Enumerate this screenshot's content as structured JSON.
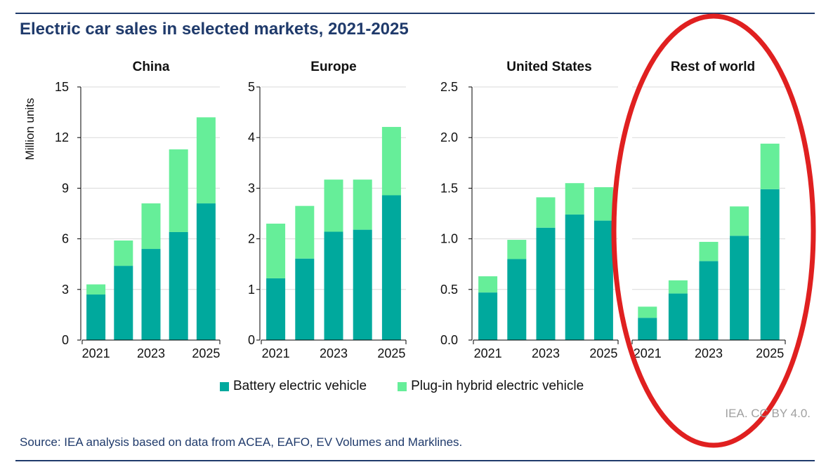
{
  "header": {
    "title": "Electric car sales in selected markets, 2021-2025"
  },
  "footer": {
    "credit": "IEA. CC BY 4.0.",
    "source": "Source: IEA analysis based on data from ACEA, EAFO, EV Volumes and Marklines."
  },
  "colors": {
    "bev": "#00a99d",
    "phev": "#66ee99",
    "axis": "#000000",
    "grid": "#d9d9d9",
    "highlight": "#e02020",
    "title": "#1f3a6b"
  },
  "chart_data": {
    "type": "bar",
    "stacked": true,
    "ylabel": "Million units",
    "legend_position": "bottom",
    "grid": true,
    "legend": [
      {
        "name": "Battery electric vehicle",
        "color": "#00a99d"
      },
      {
        "name": "Plug-in hybrid electric vehicle",
        "color": "#66ee99"
      }
    ],
    "panels": [
      {
        "name": "China",
        "categories": [
          "2021",
          "2022",
          "2023",
          "2024",
          "2025"
        ],
        "tick_labels": [
          "2021",
          "",
          "2023",
          "",
          "2025"
        ],
        "ylim": [
          0,
          15
        ],
        "yticks": [
          "0",
          "3",
          "6",
          "9",
          "12",
          "15"
        ],
        "series": [
          {
            "name": "Battery electric vehicle",
            "values": [
              2.7,
              4.4,
              5.4,
              6.4,
              8.1
            ]
          },
          {
            "name": "Plug-in hybrid electric vehicle",
            "values": [
              0.6,
              1.5,
              2.7,
              4.9,
              5.1
            ]
          }
        ]
      },
      {
        "name": "Europe",
        "categories": [
          "2021",
          "2022",
          "2023",
          "2024",
          "2025"
        ],
        "tick_labels": [
          "2021",
          "",
          "2023",
          "",
          "2025"
        ],
        "ylim": [
          0,
          5
        ],
        "yticks": [
          "0",
          "1",
          "2",
          "3",
          "4",
          "5"
        ],
        "series": [
          {
            "name": "Battery electric vehicle",
            "values": [
              1.22,
              1.61,
              2.14,
              2.18,
              2.86
            ]
          },
          {
            "name": "Plug-in hybrid electric vehicle",
            "values": [
              1.08,
              1.04,
              1.03,
              0.99,
              1.35
            ]
          }
        ]
      },
      {
        "name": "United States",
        "categories": [
          "2021",
          "2022",
          "2023",
          "2024",
          "2025"
        ],
        "tick_labels": [
          "2021",
          "",
          "2023",
          "",
          "2025"
        ],
        "ylim": [
          0,
          2.5
        ],
        "yticks": [
          "0.0",
          "0.5",
          "1.0",
          "1.5",
          "2.0",
          "2.5"
        ],
        "series": [
          {
            "name": "Battery electric vehicle",
            "values": [
              0.47,
              0.8,
              1.11,
              1.24,
              1.18
            ]
          },
          {
            "name": "Plug-in hybrid electric vehicle",
            "values": [
              0.16,
              0.19,
              0.3,
              0.31,
              0.33
            ]
          }
        ]
      },
      {
        "name": "Rest of world",
        "categories": [
          "2021",
          "2022",
          "2023",
          "2024",
          "2025"
        ],
        "tick_labels": [
          "2021",
          "",
          "2023",
          "",
          "2025"
        ],
        "ylim": [
          0,
          2.5
        ],
        "yticks": [
          "0.0",
          "0.5",
          "1.0",
          "1.5",
          "2.0",
          "2.5"
        ],
        "highlighted": true,
        "series": [
          {
            "name": "Battery electric vehicle",
            "values": [
              0.22,
              0.46,
              0.78,
              1.03,
              1.49
            ]
          },
          {
            "name": "Plug-in hybrid electric vehicle",
            "values": [
              0.11,
              0.13,
              0.19,
              0.29,
              0.45
            ]
          }
        ]
      }
    ]
  }
}
